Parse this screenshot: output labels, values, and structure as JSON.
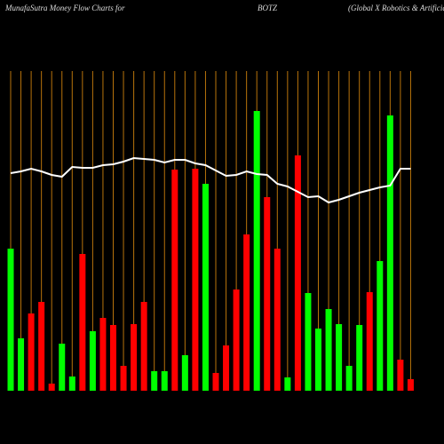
{
  "chart_data": {
    "type": "bar",
    "title_left": "MunafaSutra  Money Flow  Charts for",
    "title_center": "BOTZ",
    "title_right": "(Global X  Robotics & Artificial",
    "values": [
      160,
      59,
      87,
      100,
      8,
      53,
      16,
      154,
      67,
      82,
      74,
      28,
      75,
      100,
      22,
      22,
      249,
      40,
      250,
      233,
      20,
      51,
      114,
      176,
      315,
      218,
      160,
      15,
      265,
      110,
      70,
      92,
      75,
      28,
      74,
      111,
      146,
      310,
      35,
      13
    ],
    "colors": [
      "#00ff00",
      "#00ff00",
      "#ff0000",
      "#ff0000",
      "#ff0000",
      "#00ff00",
      "#00ff00",
      "#ff0000",
      "#00ff00",
      "#ff0000",
      "#ff0000",
      "#ff0000",
      "#ff0000",
      "#ff0000",
      "#00ff00",
      "#00ff00",
      "#ff0000",
      "#00ff00",
      "#ff0000",
      "#00ff00",
      "#ff0000",
      "#ff0000",
      "#ff0000",
      "#ff0000",
      "#00ff00",
      "#ff0000",
      "#ff0000",
      "#00ff00",
      "#ff0000",
      "#00ff00",
      "#00ff00",
      "#00ff00",
      "#00ff00",
      "#00ff00",
      "#00ff00",
      "#ff0000",
      "#00ff00",
      "#00ff00",
      "#ff0000",
      "#ff0000"
    ],
    "line_values": [
      245,
      247,
      250,
      247,
      243,
      241,
      252,
      251,
      251,
      254,
      255,
      258,
      262,
      261,
      260,
      257,
      260,
      260,
      256,
      254,
      248,
      242,
      243,
      247,
      244,
      243,
      233,
      230,
      224,
      218,
      219,
      212,
      215,
      219,
      223,
      226,
      229,
      231,
      250,
      250
    ],
    "line_color": "#ffffff",
    "grid_color": "#b8730b"
  }
}
